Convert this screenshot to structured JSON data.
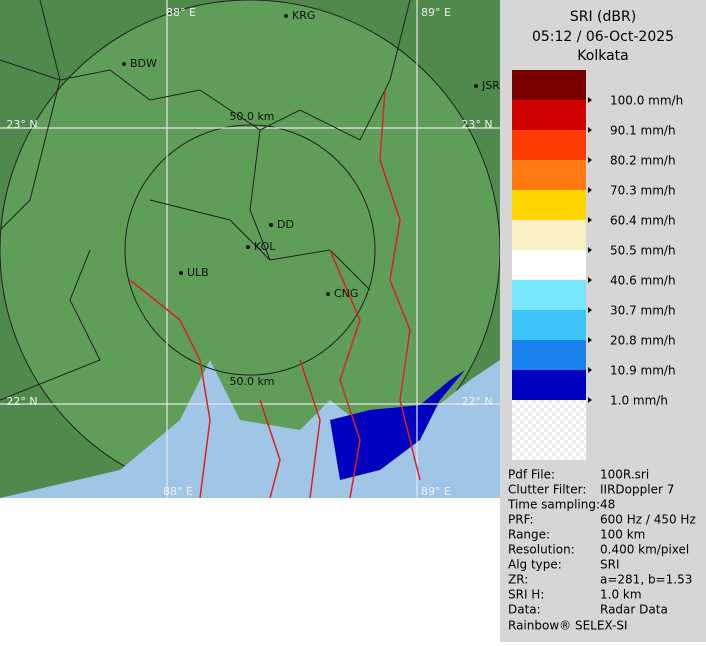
{
  "header": {
    "product": "SRI (dBR)",
    "time": "05:12 / 06-Oct-2025",
    "site": "Kolkata"
  },
  "legend": {
    "items": [
      {
        "label": null,
        "color": "#7a0000"
      },
      {
        "label": "100.0 mm/h",
        "color": "#d20000"
      },
      {
        "label": "90.1 mm/h",
        "color": "#ff3c00"
      },
      {
        "label": "80.2 mm/h",
        "color": "#ff7a10"
      },
      {
        "label": "70.3 mm/h",
        "color": "#ffd400"
      },
      {
        "label": "60.4 mm/h",
        "color": "#f8f0c4"
      },
      {
        "label": "50.5 mm/h",
        "color": "#ffffff"
      },
      {
        "label": "40.6 mm/h",
        "color": "#78e6fa"
      },
      {
        "label": "30.7 mm/h",
        "color": "#3cc4f6"
      },
      {
        "label": "20.8 mm/h",
        "color": "#1a82ee"
      },
      {
        "label": "10.9 mm/h",
        "color": "#0000c0"
      },
      {
        "label": "1.0 mm/h",
        "color": null
      }
    ]
  },
  "map": {
    "grid_labels": [
      "88° E",
      "89° E",
      "23° N",
      "23° N",
      "22° N",
      "22° N",
      "88° E",
      "89° E"
    ],
    "places": [
      "KRG",
      "BDW",
      "JSR",
      "DD",
      "KOL",
      "ULB",
      "CNG"
    ],
    "range_labels": [
      "50.0 km",
      "50.0 km"
    ]
  },
  "info": {
    "rows": [
      [
        "Pdf File:",
        "100R.sri"
      ],
      [
        "Clutter Filter:",
        "IIRDoppler 7"
      ],
      [
        "Time sampling:",
        "48"
      ],
      [
        "PRF:",
        "600 Hz / 450 Hz"
      ],
      [
        "Range:",
        "100 km"
      ],
      [
        "Resolution:",
        "0.400 km/pixel"
      ],
      [
        "Alg type:",
        "SRI"
      ],
      [
        "ZR:",
        "a=281, b=1.53"
      ],
      [
        "SRI H:",
        "1.0 km"
      ],
      [
        "Data:",
        "Radar Data"
      ]
    ],
    "footer": "Rainbow® SELEX-SI"
  }
}
